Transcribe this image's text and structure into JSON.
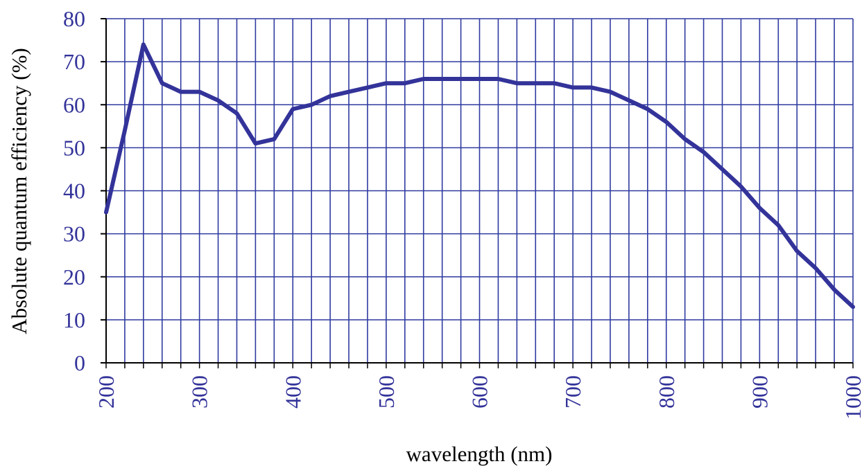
{
  "chart_data": {
    "type": "line",
    "title": "",
    "xlabel": "wavelength (nm)",
    "ylabel": "Absolute quantum efficiency (%)",
    "xlim": [
      200,
      1000
    ],
    "ylim": [
      0,
      80
    ],
    "xticks": [
      200,
      300,
      400,
      500,
      600,
      700,
      800,
      900,
      1000
    ],
    "yticks": [
      0,
      10,
      20,
      30,
      40,
      50,
      60,
      70,
      80
    ],
    "x_minor_step": 20,
    "y_minor_step": 10,
    "grid": true,
    "series": [
      {
        "x": [
          200,
          220,
          240,
          260,
          280,
          300,
          320,
          340,
          360,
          380,
          400,
          420,
          440,
          460,
          480,
          500,
          520,
          540,
          560,
          580,
          600,
          620,
          640,
          660,
          680,
          700,
          720,
          740,
          760,
          780,
          800,
          820,
          840,
          860,
          880,
          900,
          920,
          940,
          960,
          980,
          1000
        ],
        "y": [
          35,
          54,
          74,
          65,
          63,
          63,
          61,
          58,
          51,
          52,
          59,
          60,
          62,
          63,
          64,
          65,
          65,
          66,
          66,
          66,
          66,
          66,
          65,
          65,
          65,
          64,
          64,
          63,
          61,
          59,
          56,
          52,
          49,
          45,
          41,
          36,
          32,
          26,
          22,
          17,
          13
        ]
      }
    ]
  },
  "colors": {
    "line": "#33339a",
    "grid": "#2f3aa0",
    "tick_text": "#33339a",
    "label_text": "#000000"
  }
}
